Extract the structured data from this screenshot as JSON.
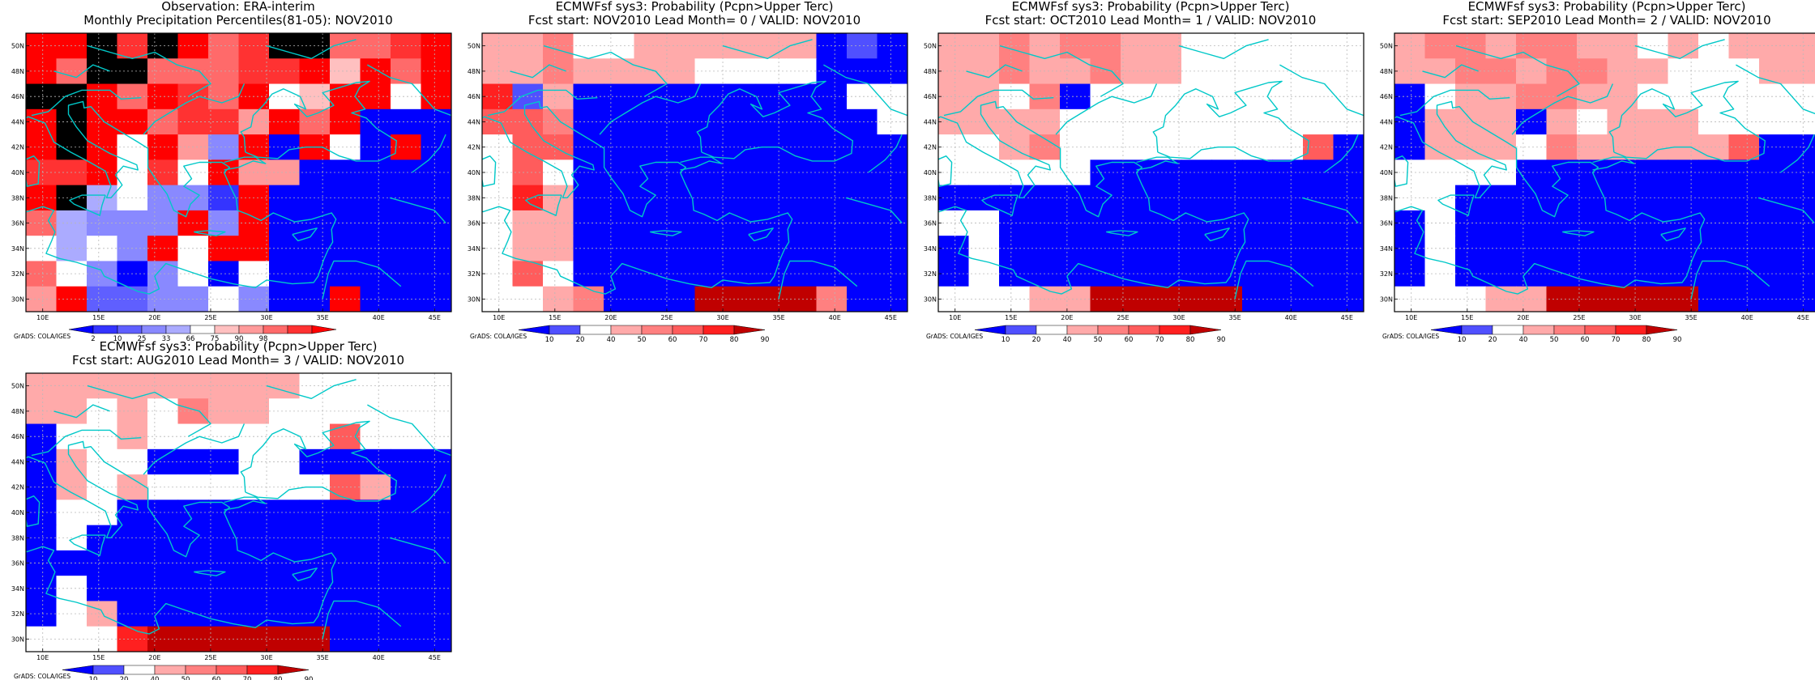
{
  "colors": {
    "obs": [
      "#0000ff",
      "#3434ff",
      "#5f5fff",
      "#8989ff",
      "#ababff",
      "#ffffff",
      "#ffc0c0",
      "#ff9a9a",
      "#ff6a6a",
      "#ff3232",
      "#ff0000"
    ],
    "fcst": [
      "#0000ff",
      "#5050ff",
      "#ffffff",
      "#ffaaaa",
      "#ff8080",
      "#ff5c5c",
      "#ff2020",
      "#c00000"
    ],
    "coast": "#00c8c8",
    "grid": "#b8b8b8"
  },
  "map": {
    "lat_labels": [
      "50N",
      "48N",
      "46N",
      "44N",
      "42N",
      "40N",
      "38N",
      "36N",
      "34N",
      "32N",
      "30N"
    ],
    "lon_labels": [
      "10E",
      "15E",
      "20E",
      "25E",
      "30E",
      "35E",
      "40E",
      "45E"
    ],
    "credit": "GrADS: COLA/IGES"
  },
  "panels": [
    {
      "title1": "Observation: ERA-interim",
      "title2": "Monthly Precipitation Percentiles(81-05): NOV2010",
      "colorbar_type": "obs",
      "colorbar_labels": [
        "2",
        "10",
        "25",
        "33",
        "66",
        "75",
        "90",
        "98"
      ],
      "grid": [
        "AAJ9JA89JJ889A",
        "A8JJ88899A6A8A",
        "JJA8A98A56AB5B",
        "AJAA8997A8A000",
        "AJA5A73A0A50A0",
        "99A595A7700000",
        "AJ45331A000000",
        "84333A3A000000",
        "5453A5AA000000",
        "85303505000000",
        "7A22335300A000"
      ]
    },
    {
      "title1": "ECMWFsf sys3: Probability (Pcpn>Upper Terc)",
      "title2": "Fcst start: NOV2010  Lead Month= 0 / VALID: NOV2010",
      "colorbar_type": "fcst",
      "colorbar_labels": [
        "10",
        "20",
        "40",
        "50",
        "60",
        "70",
        "80",
        "90"
      ],
      "grid": [
        "33422333333010",
        "33433332222000",
        "61300000000022",
        "55400000000002",
        "25500000000000",
        "25200000000000",
        "26300000000000",
        "23300000000000",
        "23300000000000",
        "25200000000000",
        "22340007777400"
      ]
    },
    {
      "title1": "ECMWFsf sys3: Probability (Pcpn>Upper Terc)",
      "title2": "Fcst start: OCT2010  Lead Month= 1 / VALID: NOV2010",
      "colorbar_type": "fcst",
      "colorbar_labels": [
        "10",
        "20",
        "40",
        "50",
        "60",
        "70",
        "80",
        "90"
      ],
      "grid": [
        "33434433222222",
        "33433433222222",
        "33240222222222",
        "33332222222222",
        "22342222222250",
        "22222000000000",
        "00000000000000",
        "22000000000000",
        "02000000000000",
        "02000000000000",
        "22233777770000"
      ]
    },
    {
      "title1": "ECMWFsf sys3: Probability (Pcpn>Upper Terc)",
      "title2": "Fcst start: SEP2010  Lead Month= 2 / VALID: NOV2010",
      "colorbar_type": "fcst",
      "colorbar_labels": [
        "10",
        "20",
        "40",
        "50",
        "60",
        "70",
        "80",
        "90"
      ],
      "grid": [
        "34434433232333",
        "33443443322233",
        "02334433222222",
        "03330323332222",
        "03332433333500",
        "22220000000000",
        "22000000000000",
        "02000000000000",
        "02000000000000",
        "02000000000000",
        "22233777770000"
      ]
    },
    {
      "title1": "ECMWFsf sys3: Probability (Pcpn>Upper Terc)",
      "title2": "Fcst start: AUG2010  Lead Month= 3 / VALID: NOV2010",
      "colorbar_type": "fcst",
      "colorbar_labels": [
        "10",
        "20",
        "40",
        "50",
        "60",
        "70",
        "80",
        "90"
      ],
      "grid": [
        "33333333322222",
        "33232433222222",
        "02232222225222",
        "03220002200000",
        "03232222225300",
        "02200000000000",
        "02000000000000",
        "00000000000000",
        "02000000000000",
        "02300000000000",
        "22267777770000"
      ]
    }
  ]
}
